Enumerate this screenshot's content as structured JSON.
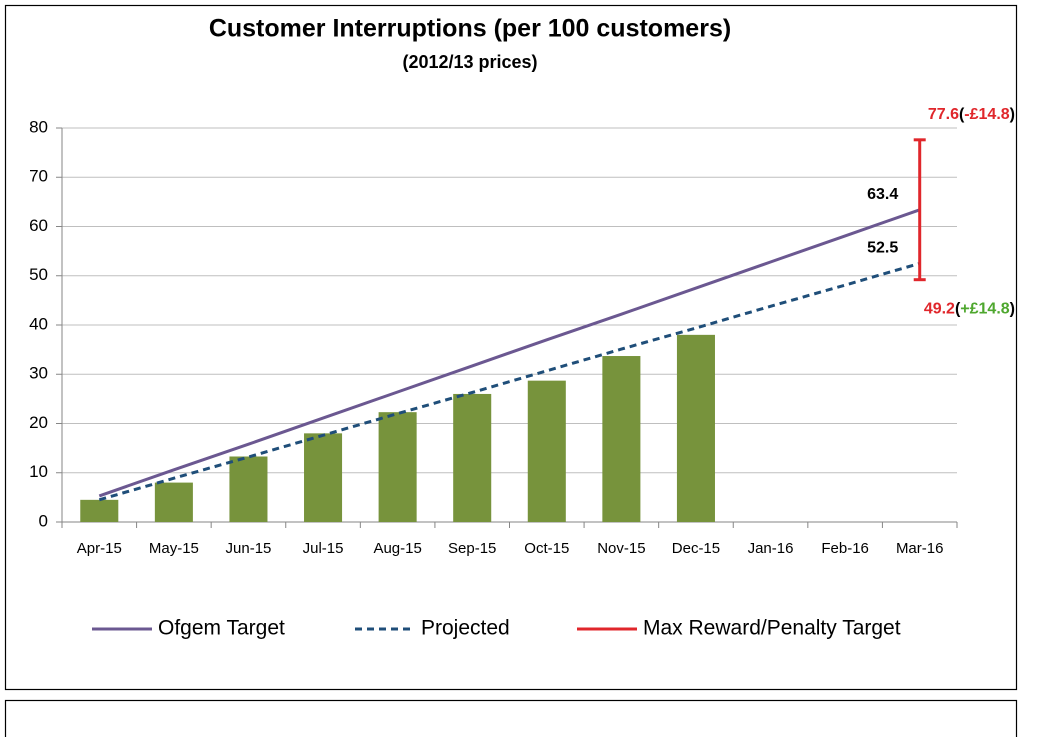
{
  "chart_data": {
    "type": "bar",
    "title": "Customer Interruptions (per 100 customers)",
    "subtitle": "(2012/13 prices)",
    "categories": [
      "Apr-15",
      "May-15",
      "Jun-15",
      "Jul-15",
      "Aug-15",
      "Sep-15",
      "Oct-15",
      "Nov-15",
      "Dec-15",
      "Jan-16",
      "Feb-16",
      "Mar-16"
    ],
    "ylim": [
      0,
      80
    ],
    "yticks": [
      0,
      10,
      20,
      30,
      40,
      50,
      60,
      70,
      80
    ],
    "grid": true,
    "legend": "bottom",
    "series": [
      {
        "type": "bar",
        "color": "#77933c",
        "values": [
          4.5,
          8,
          13.3,
          18,
          22.3,
          26,
          28.7,
          33.7,
          38,
          null,
          null,
          null
        ]
      },
      {
        "type": "line",
        "name": "Ofgem Target",
        "color": "#6b5891",
        "dash": false,
        "values": [
          5.3,
          10.6,
          15.8,
          21.1,
          26.4,
          31.7,
          37.0,
          42.2,
          47.5,
          52.8,
          58.1,
          63.4
        ]
      },
      {
        "type": "line",
        "name": "Projected",
        "color": "#1f4e79",
        "dash": true,
        "values": [
          4.5,
          8.9,
          13.2,
          17.6,
          22.0,
          26.3,
          30.7,
          35.1,
          39.4,
          43.8,
          48.1,
          52.5
        ]
      }
    ],
    "error_bar": {
      "name": "Max Reward/Penalty Target",
      "color": "#e0262b",
      "category": 11,
      "low": 49.2,
      "high": 77.6,
      "high_note": [
        "(",
        "-£14.8",
        ")"
      ],
      "high_note_color": "#e0262b",
      "low_note": [
        "(",
        "+£14.8",
        ")"
      ],
      "low_note_color": "#4ea72e"
    }
  }
}
